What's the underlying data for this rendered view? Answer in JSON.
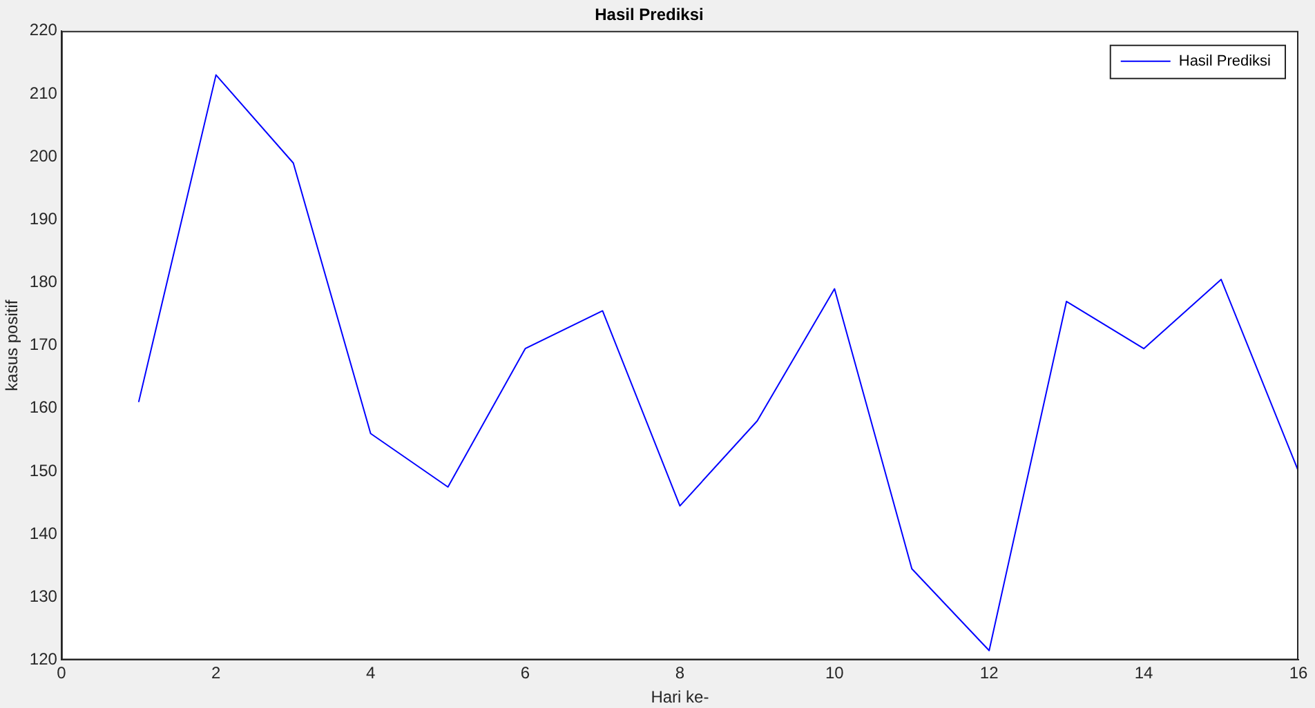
{
  "chart_data": {
    "type": "line",
    "title": "Hasil Prediksi",
    "xlabel": "Hari ke-",
    "ylabel": "kasus positif",
    "x": [
      1,
      2,
      3,
      4,
      5,
      6,
      7,
      8,
      9,
      10,
      11,
      12,
      13,
      14,
      15,
      16
    ],
    "series": [
      {
        "name": "Hasil Prediksi",
        "color": "#0000ff",
        "values": [
          161,
          213,
          199,
          156,
          147.5,
          169.5,
          175.5,
          144.5,
          158,
          179,
          134.5,
          121.5,
          177,
          169.5,
          180.5,
          150
        ]
      }
    ],
    "xlim": [
      0,
      16
    ],
    "xticks": [
      0,
      2,
      4,
      6,
      8,
      10,
      12,
      14,
      16
    ],
    "ylim": [
      120,
      220
    ],
    "yticks": [
      120,
      130,
      140,
      150,
      160,
      170,
      180,
      190,
      200,
      210,
      220
    ],
    "grid": false,
    "legend": "top right",
    "marker": "none",
    "line_style": "solid"
  }
}
